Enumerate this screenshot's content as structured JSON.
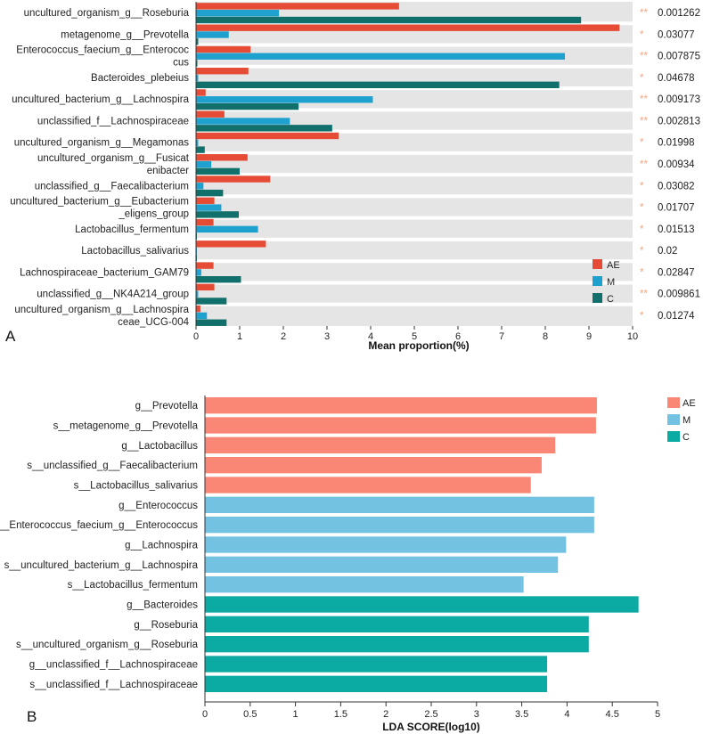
{
  "chart_data": [
    {
      "type": "bar",
      "panel_label": "A",
      "orientation": "horizontal",
      "xlabel": "Mean proportion(%)",
      "xlim": [
        0,
        10
      ],
      "xticks": [
        0,
        1,
        2,
        3,
        4,
        5,
        6,
        7,
        8,
        9,
        10
      ],
      "legend_position": "bottom-right",
      "categories": [
        [
          "uncultured_organism_g__Roseburia"
        ],
        [
          "metagenome_g__Prevotella"
        ],
        [
          "Enterococcus_faecium_g__Enterococ",
          "cus"
        ],
        [
          "Bacteroides_plebeius"
        ],
        [
          "uncultured_bacterium_g__Lachnospira"
        ],
        [
          "unclassified_f__Lachnospiraceae"
        ],
        [
          "uncultured_organism_g__Megamonas"
        ],
        [
          "uncultured_organism_g__Fusicat",
          "enibacter"
        ],
        [
          "unclassified_g__Faecalibacterium"
        ],
        [
          "uncultured_bacterium_g__Eubacterium",
          "_eligens_group"
        ],
        [
          "Lactobacillus_fermentum"
        ],
        [
          "Lactobacillus_salivarius"
        ],
        [
          "Lachnospiraceae_bacterium_GAM79"
        ],
        [
          "unclassified_g__NK4A214_group"
        ],
        [
          "uncultured_organism_g__Lachnospira",
          "ceae_UCG-004"
        ]
      ],
      "series": [
        {
          "name": "AE",
          "color": "#e64b35",
          "values": [
            4.65,
            9.7,
            1.25,
            1.2,
            0.22,
            0.65,
            3.27,
            1.18,
            1.7,
            0.42,
            0.4,
            1.6,
            0.4,
            0.42,
            0.1
          ]
        },
        {
          "name": "M",
          "color": "#1fa1cf",
          "values": [
            1.9,
            0.75,
            8.45,
            0.05,
            4.05,
            2.15,
            0.05,
            0.35,
            0.17,
            0.58,
            1.42,
            0.02,
            0.12,
            0.05,
            0.25
          ]
        },
        {
          "name": "C",
          "color": "#11706c",
          "values": [
            8.82,
            0.05,
            0.03,
            8.32,
            2.35,
            3.12,
            0.2,
            1.0,
            0.62,
            0.98,
            0.02,
            0.02,
            1.03,
            0.7,
            0.7
          ]
        }
      ],
      "significance": [
        "**",
        "*",
        "**",
        "*",
        "**",
        "**",
        "*",
        "**",
        "*",
        "*",
        "*",
        "*",
        "*",
        "**",
        "*"
      ],
      "p_values": [
        "0.001262",
        "0.03077",
        "0.007875",
        "0.04678",
        "0.009173",
        "0.002813",
        "0.01998",
        "0.00934",
        "0.03082",
        "0.01707",
        "0.01513",
        "0.02",
        "0.02847",
        "0.009861",
        "0.01274"
      ],
      "star_color": "#f4a582"
    },
    {
      "type": "bar",
      "panel_label": "B",
      "orientation": "horizontal",
      "xlabel": "LDA SCORE(log10)",
      "xlim": [
        0,
        5
      ],
      "xticks": [
        "0",
        "0.5",
        "1",
        "1.5",
        "2",
        "2.5",
        "3",
        "3.5",
        "4",
        "4.5",
        "5"
      ],
      "legend_position": "top-right",
      "legend": [
        {
          "name": "AE",
          "color": "#fa8775"
        },
        {
          "name": "M",
          "color": "#73c2e2"
        },
        {
          "name": "C",
          "color": "#0baaa2"
        }
      ],
      "bars": [
        {
          "label": "g__Prevotella",
          "value": 4.33,
          "group": "AE"
        },
        {
          "label": "s__metagenome_g__Prevotella",
          "value": 4.32,
          "group": "AE"
        },
        {
          "label": "g__Lactobacillus",
          "value": 3.87,
          "group": "AE"
        },
        {
          "label": "s__unclassified_g__Faecalibacterium",
          "value": 3.72,
          "group": "AE"
        },
        {
          "label": "s__Lactobacillus_salivarius",
          "value": 3.6,
          "group": "AE"
        },
        {
          "label": "g__Enterococcus",
          "value": 4.3,
          "group": "M"
        },
        {
          "label": "s__Enterococcus_faecium_g__Enterococcus",
          "value": 4.3,
          "group": "M"
        },
        {
          "label": "g__Lachnospira",
          "value": 3.99,
          "group": "M"
        },
        {
          "label": "s__uncultured_bacterium_g__Lachnospira",
          "value": 3.9,
          "group": "M"
        },
        {
          "label": "s__Lactobacillus_fermentum",
          "value": 3.52,
          "group": "M"
        },
        {
          "label": "g__Bacteroides",
          "value": 4.79,
          "group": "C"
        },
        {
          "label": "g__Roseburia",
          "value": 4.24,
          "group": "C"
        },
        {
          "label": "s__uncultured_organism_g__Roseburia",
          "value": 4.24,
          "group": "C"
        },
        {
          "label": "g__unclassified_f__Lachnospiraceae",
          "value": 3.78,
          "group": "C"
        },
        {
          "label": "s__unclassified_f__Lachnospiraceae",
          "value": 3.78,
          "group": "C"
        }
      ]
    }
  ]
}
